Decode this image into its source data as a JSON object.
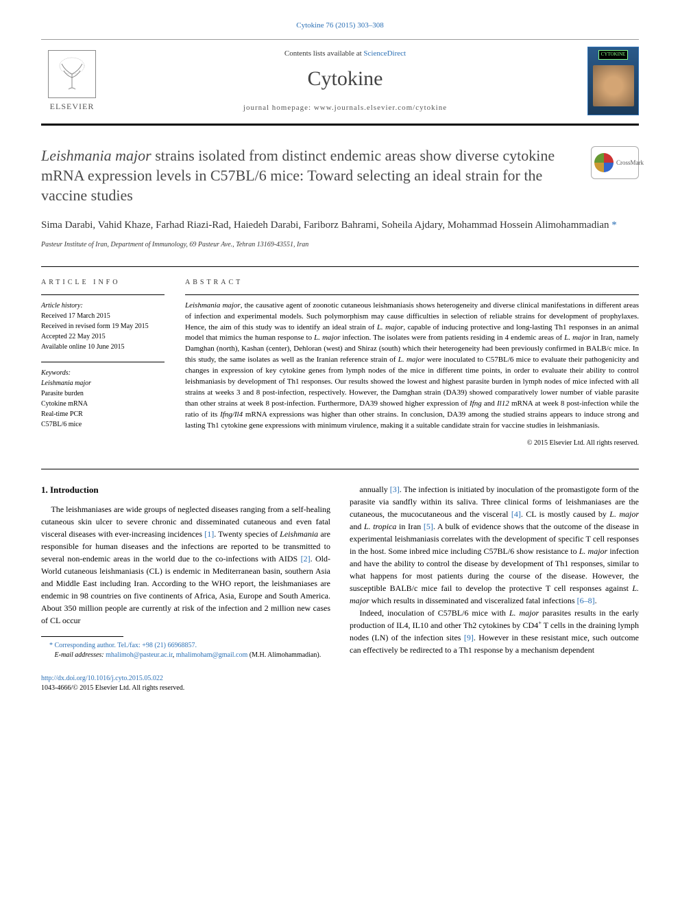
{
  "citation": "Cytokine 76 (2015) 303–308",
  "banner": {
    "contents_prefix": "Contents lists available at ",
    "contents_link": "ScienceDirect",
    "journal": "Cytokine",
    "homepage_prefix": "journal homepage: ",
    "homepage_url": "www.journals.elsevier.com/cytokine",
    "publisher": "ELSEVIER",
    "cover_label": "CYTOKINE"
  },
  "crossmark_label": "CrossMark",
  "title_pre": "Leishmania major",
  "title_post": " strains isolated from distinct endemic areas show diverse cytokine mRNA expression levels in C57BL/6 mice: Toward selecting an ideal strain for the vaccine studies",
  "authors": "Sima Darabi, Vahid Khaze, Farhad Riazi-Rad, Haiedeh Darabi, Fariborz Bahrami, Soheila Ajdary, Mohammad Hossein Alimohammadian",
  "corr_marker": " *",
  "affiliation": "Pasteur Institute of Iran, Department of Immunology, 69 Pasteur Ave., Tehran 13169-43551, Iran",
  "info": {
    "section_label": "ARTICLE INFO",
    "history_label": "Article history:",
    "history": [
      "Received 17 March 2015",
      "Received in revised form 19 May 2015",
      "Accepted 22 May 2015",
      "Available online 10 June 2015"
    ],
    "keywords_label": "Keywords:",
    "keywords": [
      "Leishmania major",
      "Parasite burden",
      "Cytokine mRNA",
      "Real-time PCR",
      "C57BL/6 mice"
    ]
  },
  "abstract": {
    "label": "ABSTRACT",
    "text_parts": [
      {
        "italic": true,
        "text": "Leishmania major"
      },
      {
        "italic": false,
        "text": ", the causative agent of zoonotic cutaneous leishmaniasis shows heterogeneity and diverse clinical manifestations in different areas of infection and experimental models. Such polymorphism may cause difficulties in selection of reliable strains for development of prophylaxes. Hence, the aim of this study was to identify an ideal strain of "
      },
      {
        "italic": true,
        "text": "L. major"
      },
      {
        "italic": false,
        "text": ", capable of inducing protective and long-lasting Th1 responses in an animal model that mimics the human response to "
      },
      {
        "italic": true,
        "text": "L. major"
      },
      {
        "italic": false,
        "text": " infection. The isolates were from patients residing in 4 endemic areas of "
      },
      {
        "italic": true,
        "text": "L. major"
      },
      {
        "italic": false,
        "text": " in Iran, namely Damghan (north), Kashan (center), Dehloran (west) and Shiraz (south) which their heterogeneity had been previously confirmed in BALB/c mice. In this study, the same isolates as well as the Iranian reference strain of "
      },
      {
        "italic": true,
        "text": "L. major"
      },
      {
        "italic": false,
        "text": " were inoculated to C57BL/6 mice to evaluate their pathogenicity and changes in expression of key cytokine genes from lymph nodes of the mice in different time points, in order to evaluate their ability to control leishmaniasis by development of Th1 responses. Our results showed the lowest and highest parasite burden in lymph nodes of mice infected with all strains at weeks 3 and 8 post-infection, respectively. However, the Damghan strain (DA39) showed comparatively lower number of viable parasite than other strains at week 8 post-infection. Furthermore, DA39 showed higher expression of "
      },
      {
        "italic": true,
        "text": "Ifng"
      },
      {
        "italic": false,
        "text": " and "
      },
      {
        "italic": true,
        "text": "Il12"
      },
      {
        "italic": false,
        "text": " mRNA at week 8 post-infection while the ratio of its "
      },
      {
        "italic": true,
        "text": "Ifng/Il4"
      },
      {
        "italic": false,
        "text": " mRNA expressions was higher than other strains. In conclusion, DA39 among the studied strains appears to induce strong and lasting Th1 cytokine gene expressions with minimum virulence, making it a suitable candidate strain for vaccine studies in leishmaniasis."
      }
    ],
    "copyright": "© 2015 Elsevier Ltd. All rights reserved."
  },
  "body": {
    "heading": "1. Introduction",
    "p1_a": "The leishmaniases are wide groups of neglected diseases ranging from a self-healing cutaneous skin ulcer to severe chronic and disseminated cutaneous and even fatal visceral diseases with ever-increasing incidences ",
    "r1": "[1]",
    "p1_b": ". Twenty species of ",
    "it1": "Leishmania",
    "p1_c": " are responsible for human diseases and the infections are reported to be transmitted to several non-endemic areas in the world due to the co-infections with AIDS ",
    "r2": "[2]",
    "p1_d": ". Old-World cutaneous leishmaniasis (CL) is endemic in Mediterranean basin, southern Asia and Middle East including Iran. According to the WHO report, the leishmaniases are endemic in 98 countries on five continents of Africa, Asia, Europe and South America. About 350 million people are currently at risk of the infection and 2 million new cases of CL occur",
    "p2_a": "annually ",
    "r3": "[3]",
    "p2_b": ". The infection is initiated by inoculation of the promastigote form of the parasite via sandfly within its saliva. Three clinical forms of leishmaniases are the cutaneous, the mucocutaneous and the visceral ",
    "r4": "[4]",
    "p2_c": ". CL is mostly caused by ",
    "it2": "L. major",
    "p2_d": " and ",
    "it3": "L. tropica",
    "p2_e": " in Iran ",
    "r5": "[5]",
    "p2_f": ". A bulk of evidence shows that the outcome of the disease in experimental leishmaniasis correlates with the development of specific T cell responses in the host. Some inbred mice including C57BL/6 show resistance to ",
    "it4": "L. major",
    "p2_g": " infection and have the ability to control the disease by development of Th1 responses, similar to what happens for most patients during the course of the disease. However, the susceptible BALB/c mice fail to develop the protective T cell responses against ",
    "it5": "L. major",
    "p2_h": " which results in disseminated and visceralized fatal infections ",
    "r68": "[6–8]",
    "p2_i": ".",
    "p3_a": "Indeed, inoculation of C57BL/6 mice with ",
    "it6": "L. major",
    "p3_b": " parasites results in the early production of IL4, IL10 and other Th2 cytokines by CD4",
    "sup": "+",
    "p3_c": " T cells in the draining lymph nodes (LN) of the infection sites ",
    "r9": "[9]",
    "p3_d": ". However in these resistant mice, such outcome can effectively be redirected to a Th1 response by a mechanism dependent"
  },
  "footnote": {
    "corr_label": "* Corresponding author. Tel./fax: +98 (21) 66968857.",
    "email_label": "E-mail addresses:",
    "email1": "mhalimoh@pasteur.ac.ir",
    "email_sep": ", ",
    "email2": "mhalimoham@gmail.com",
    "email_suffix": " (M.H. Alimohammadian)."
  },
  "footer": {
    "doi": "http://dx.doi.org/10.1016/j.cyto.2015.05.022",
    "issn": "1043-4666/© 2015 Elsevier Ltd. All rights reserved."
  }
}
